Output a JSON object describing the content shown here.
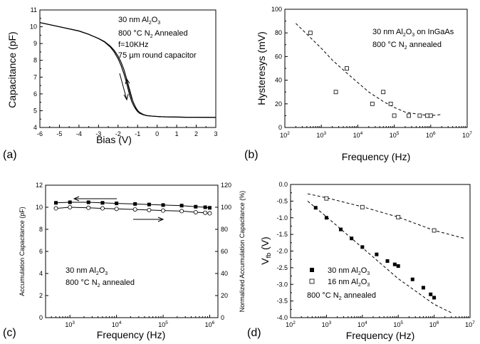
{
  "chart_data": [
    {
      "panel": "(a)",
      "type": "line",
      "xlabel": "Bias (V)",
      "ylabel": "Capacitance (pF)",
      "xlim": [
        -6,
        3
      ],
      "ylim": [
        4,
        11
      ],
      "xticks": [
        "-6",
        "-5",
        "-4",
        "-3",
        "-2",
        "-1",
        "0",
        "1",
        "2",
        "3"
      ],
      "yticks": [
        "4",
        "5",
        "6",
        "7",
        "8",
        "9",
        "10",
        "11"
      ],
      "annotations": [
        "30 nm Al₂O₃",
        "800 °C N₂ Annealed",
        "f=10KHz",
        "75 µm round capacitor"
      ],
      "series": [
        {
          "x": [
            -6,
            -5,
            -4,
            -3.5,
            -3,
            -2.7,
            -2.4,
            -2.2,
            -2,
            -1.85,
            -1.7,
            -1.6,
            -1.5,
            -1.4,
            -1.3,
            -1.2,
            -1.1,
            -1,
            -0.9,
            -0.7,
            -0.5,
            -0.2,
            0.2,
            0.6,
            1,
            1.5,
            2,
            3
          ],
          "values": [
            10.25,
            10.0,
            9.75,
            9.55,
            9.3,
            9.1,
            8.8,
            8.5,
            8.1,
            7.7,
            7.2,
            6.8,
            6.35,
            5.9,
            5.55,
            5.3,
            5.1,
            4.95,
            4.85,
            4.75,
            4.7,
            4.67,
            4.64,
            4.63,
            4.62,
            4.61,
            4.61,
            4.6
          ]
        },
        {
          "x": [
            -6,
            -5,
            -4,
            -3.5,
            -3,
            -2.7,
            -2.4,
            -2.2,
            -2,
            -1.85,
            -1.7,
            -1.6,
            -1.5,
            -1.4,
            -1.3,
            -1.2,
            -1.1,
            -1,
            -0.9,
            -0.7,
            -0.5,
            -0.2,
            0.2,
            0.6,
            1,
            1.5,
            2,
            3
          ],
          "values": [
            10.25,
            10.0,
            9.75,
            9.55,
            9.3,
            9.12,
            8.85,
            8.6,
            8.25,
            7.9,
            7.45,
            7.05,
            6.6,
            6.15,
            5.75,
            5.45,
            5.2,
            5.02,
            4.9,
            4.77,
            4.71,
            4.67,
            4.64,
            4.63,
            4.62,
            4.61,
            4.61,
            4.6
          ]
        }
      ]
    },
    {
      "panel": "(b)",
      "type": "scatter",
      "xscale": "log",
      "xlabel": "Frequency (Hz)",
      "ylabel": "Hysteresys (mV)",
      "xlim": [
        100,
        10000000
      ],
      "ylim": [
        0,
        100
      ],
      "yticks": [
        "0",
        "20",
        "40",
        "60",
        "80",
        "100"
      ],
      "annotations": [
        "30 nm Al₂O₃ on InGaAs",
        "800 °C N₂ annealed"
      ],
      "series": [
        {
          "x": [
            500,
            2500,
            5000,
            25000,
            50000,
            80000,
            100000,
            250000,
            500000,
            800000,
            1000000
          ],
          "values": [
            80,
            30,
            50,
            20,
            30,
            20,
            10,
            10,
            10,
            10,
            10
          ]
        },
        {
          "x": [
            200,
            400,
            1000,
            2000,
            5000,
            10000,
            20000,
            50000,
            100000,
            200000,
            500000,
            1000000,
            2000000
          ],
          "values": [
            88,
            79,
            67,
            57,
            46,
            38,
            30,
            22,
            17,
            13,
            11,
            10,
            11
          ]
        }
      ]
    },
    {
      "panel": "(c)",
      "type": "line",
      "xscale": "log",
      "xlabel": "Frequency (Hz)",
      "ylabel": "Accumulation Capacitance (pF)",
      "y2label": "Normalized Accumulation Capacitance (%)",
      "xlim": [
        300,
        1500000
      ],
      "ylim": [
        0,
        12
      ],
      "y2lim": [
        0,
        120
      ],
      "yticks": [
        "0",
        "2",
        "4",
        "6",
        "8",
        "10",
        "12"
      ],
      "y2ticks": [
        "0",
        "20",
        "40",
        "60",
        "80",
        "100",
        "120"
      ],
      "annotations": [
        "30 nm Al₂O₃",
        "800 °C N₂ annealed"
      ],
      "series": [
        {
          "x": [
            500,
            1000,
            2500,
            5000,
            10000,
            25000,
            50000,
            100000,
            250000,
            500000,
            800000,
            1000000
          ],
          "values": [
            10.4,
            10.45,
            10.45,
            10.4,
            10.35,
            10.3,
            10.25,
            10.2,
            10.15,
            10.05,
            10.0,
            9.95
          ]
        },
        {
          "x": [
            500,
            1000,
            2500,
            5000,
            10000,
            25000,
            50000,
            100000,
            250000,
            500000,
            800000,
            1000000
          ],
          "values": [
            99,
            100,
            99.5,
            99,
            98.5,
            98,
            97.5,
            97,
            96.5,
            95.5,
            95,
            94.5
          ]
        }
      ]
    },
    {
      "panel": "(d)",
      "type": "scatter",
      "xscale": "log",
      "xlabel": "Frequency (Hz)",
      "ylabel": "V",
      "ylabel_sub": "fb",
      "ylabel_unit": " (V)",
      "xlim": [
        100,
        10000000
      ],
      "ylim": [
        -4.0,
        0.0
      ],
      "yticks": [
        "0.0",
        "-0.5",
        "-1.0",
        "-1.5",
        "-2.0",
        "-2.5",
        "-3.0",
        "-3.5",
        "-4.0"
      ],
      "legend": [
        "30 nm Al₂O₃",
        "16 nm Al₂O₃"
      ],
      "annotations": [
        "800 °C N₂ annealed"
      ],
      "series": [
        {
          "name": "30 nm Al₂O₃",
          "x": [
            500,
            1000,
            2500,
            5000,
            10000,
            25000,
            50000,
            80000,
            100000,
            250000,
            500000,
            800000,
            1000000
          ],
          "values": [
            -0.7,
            -1.0,
            -1.35,
            -1.62,
            -1.88,
            -2.1,
            -2.3,
            -2.4,
            -2.45,
            -2.85,
            -3.1,
            -3.3,
            -3.4
          ]
        },
        {
          "name": "16 nm Al₂O₃",
          "x": [
            1000,
            10000,
            100000,
            1000000
          ],
          "values": [
            -0.42,
            -0.68,
            -0.98,
            -1.38
          ]
        },
        {
          "x": [
            300,
            1000,
            10000,
            100000,
            1000000,
            3000000
          ],
          "values": [
            -0.5,
            -0.97,
            -1.9,
            -2.83,
            -3.6,
            -3.85
          ]
        },
        {
          "x": [
            300,
            1000,
            10000,
            100000,
            1000000,
            7000000
          ],
          "values": [
            -0.28,
            -0.4,
            -0.67,
            -0.98,
            -1.38,
            -1.62
          ]
        }
      ]
    }
  ],
  "labels": {
    "a": {
      "xlabel": "Bias (V)",
      "ylabel": "Capacitance (pF)",
      "ann1": "30 nm Al",
      "ann1_sub": "2",
      "ann1_tail": "O",
      "ann1_sub2": "3",
      "ann2": "800 °C N",
      "ann2_sub": "2",
      "ann2_tail": " Annealed",
      "ann3": "f=10KHz",
      "ann4": "75 µm round capacitor",
      "tag": "(a)"
    },
    "b": {
      "xlabel": "Frequency (Hz)",
      "ylabel": "Hysteresys (mV)",
      "ann1": "30 nm Al",
      "ann1_sub": "2",
      "ann1_tail": "O",
      "ann1_sub2": "3",
      "ann1_end": " on InGaAs",
      "ann2": "800 °C N",
      "ann2_sub": "2",
      "ann2_tail": " annealed",
      "tag": "(b)"
    },
    "c": {
      "xlabel": "Frequency (Hz)",
      "ylabel": "Accumulation Capacitance (pF)",
      "y2label": "Normalized Accumulation Capacitance (%)",
      "ann1": "30 nm Al",
      "ann1_sub": "2",
      "ann1_tail": "O",
      "ann1_sub2": "3",
      "ann2": "800 °C N",
      "ann2_sub": "2",
      "ann2_tail": " annealed",
      "tag": "(c)"
    },
    "d": {
      "ylabel": "V",
      "ylabel_sub": "fb",
      "ylabel_unit": " (V)",
      "xlabel": "Frequency (Hz)",
      "leg1": "30 nm Al",
      "leg2": "16 nm Al",
      "leg_sub": "2",
      "leg_tail": "O",
      "leg_sub2": "3",
      "ann": "800 °C N",
      "ann_sub": "2",
      "ann_tail": " annealed",
      "tag": "(d)"
    }
  },
  "log_ticks": {
    "b": [
      {
        "m": "10",
        "e": "2"
      },
      {
        "m": "10",
        "e": "3"
      },
      {
        "m": "10",
        "e": "4"
      },
      {
        "m": "10",
        "e": "5"
      },
      {
        "m": "10",
        "e": "6"
      },
      {
        "m": "10",
        "e": "7"
      }
    ],
    "c": [
      {
        "m": "10",
        "e": "3"
      },
      {
        "m": "10",
        "e": "4"
      },
      {
        "m": "10",
        "e": "5"
      },
      {
        "m": "10",
        "e": "6"
      }
    ],
    "d": [
      {
        "m": "10",
        "e": "2"
      },
      {
        "m": "10",
        "e": "3"
      },
      {
        "m": "10",
        "e": "4"
      },
      {
        "m": "10",
        "e": "5"
      },
      {
        "m": "10",
        "e": "6"
      },
      {
        "m": "10",
        "e": "7"
      }
    ]
  }
}
